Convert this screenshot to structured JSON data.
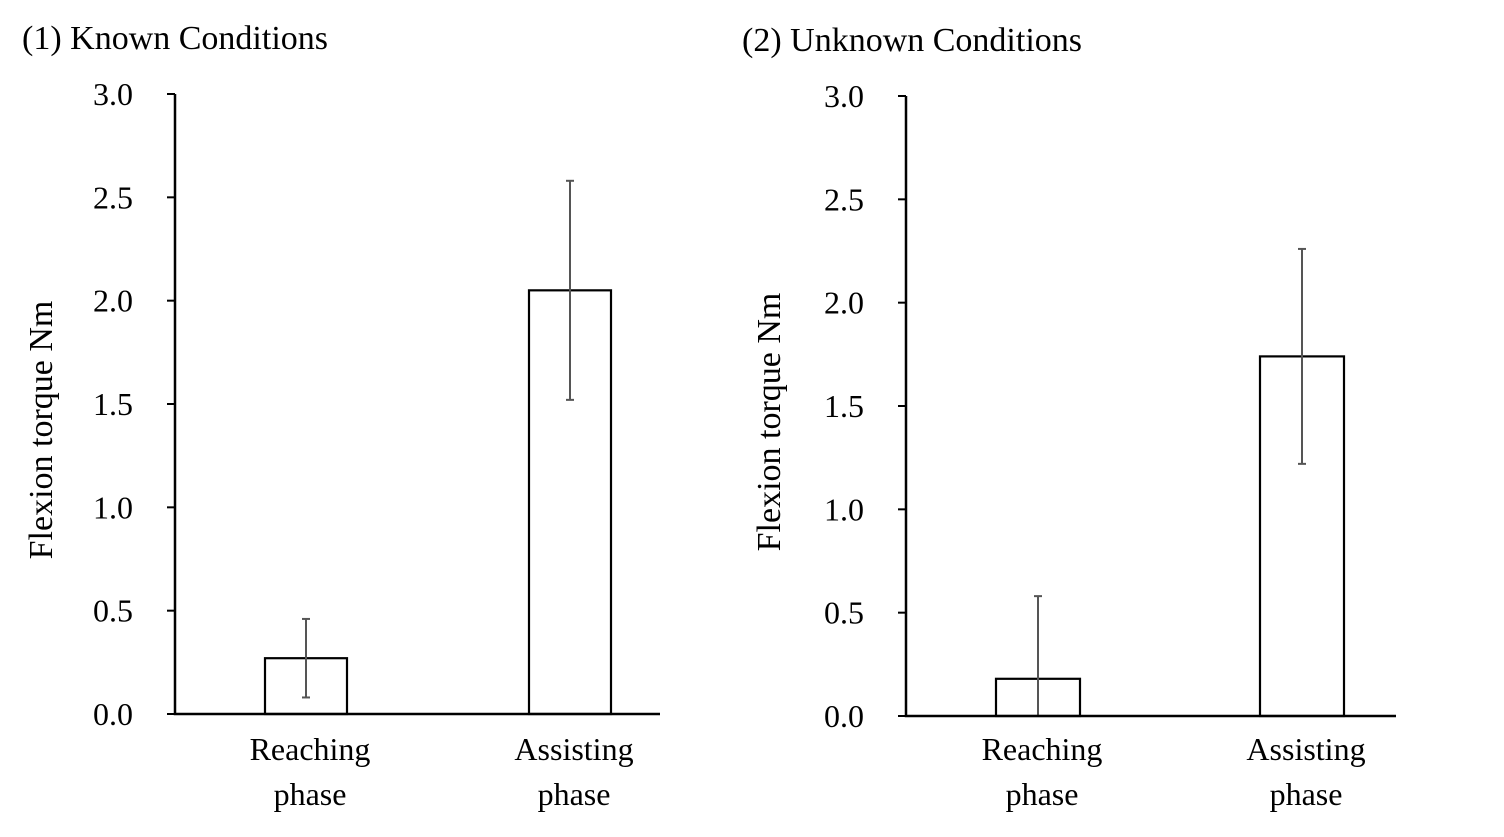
{
  "chart_data": [
    {
      "type": "bar",
      "title": "(1) Known Conditions",
      "ylabel": "Flexion torque Nm",
      "xlabel": "",
      "ylim": [
        0,
        3.0
      ],
      "yticks": [
        "0.0",
        "0.5",
        "1.0",
        "1.5",
        "2.0",
        "2.5",
        "3.0"
      ],
      "ytick_values": [
        0,
        0.5,
        1.0,
        1.5,
        2.0,
        2.5,
        3.0
      ],
      "categories": [
        {
          "line1": "Reaching",
          "line2": "phase"
        },
        {
          "line1": "Assisting",
          "line2": "phase"
        }
      ],
      "values": [
        0.27,
        2.05
      ],
      "errors": [
        0.19,
        0.53
      ]
    },
    {
      "type": "bar",
      "title": "(2) Unknown Conditions",
      "ylabel": "Flexion torque Nm",
      "xlabel": "",
      "ylim": [
        0,
        3.0
      ],
      "yticks": [
        "0.0",
        "0.5",
        "1.0",
        "1.5",
        "2.0",
        "2.5",
        "3.0"
      ],
      "ytick_values": [
        0,
        0.5,
        1.0,
        1.5,
        2.0,
        2.5,
        3.0
      ],
      "categories": [
        {
          "line1": "Reaching",
          "line2": "phase"
        },
        {
          "line1": "Assisting",
          "line2": "phase"
        }
      ],
      "values": [
        0.18,
        1.74
      ],
      "errors": [
        0.4,
        0.52
      ]
    }
  ]
}
